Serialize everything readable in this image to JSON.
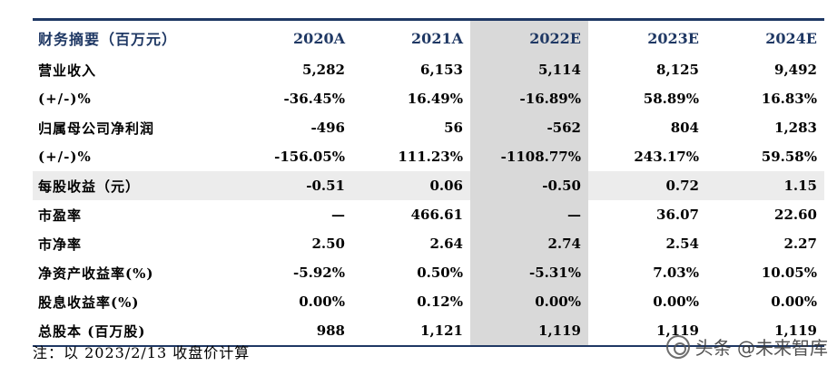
{
  "table": {
    "headers": [
      "财务摘要（百万元）",
      "2020A",
      "2021A",
      "2022E",
      "2023E",
      "2024E"
    ],
    "rows": [
      {
        "label": "营业收入",
        "values": [
          "5,282",
          "6,153",
          "5,114",
          "8,125",
          "9,492"
        ],
        "shaded": false
      },
      {
        "label": "(+/-)%",
        "values": [
          "-36.45%",
          "16.49%",
          "-16.89%",
          "58.89%",
          "16.83%"
        ],
        "shaded": false
      },
      {
        "label": "归属母公司净利润",
        "values": [
          "-496",
          "56",
          "-562",
          "804",
          "1,283"
        ],
        "shaded": false
      },
      {
        "label": "(+/-)%",
        "values": [
          "-156.05%",
          "111.23%",
          "-1108.77%",
          "243.17%",
          "59.58%"
        ],
        "shaded": false
      },
      {
        "label": "每股收益（元）",
        "values": [
          "-0.51",
          "0.06",
          "-0.50",
          "0.72",
          "1.15"
        ],
        "shaded": true
      },
      {
        "label": "市盈率",
        "values": [
          "—",
          "466.61",
          "—",
          "36.07",
          "22.60"
        ],
        "shaded": false
      },
      {
        "label": "市净率",
        "values": [
          "2.50",
          "2.64",
          "2.74",
          "2.54",
          "2.27"
        ],
        "shaded": false
      },
      {
        "label": "净资产收益率(%)",
        "values": [
          "-5.92%",
          "0.50%",
          "-5.31%",
          "7.03%",
          "10.05%"
        ],
        "shaded": false
      },
      {
        "label": "股息收益率(%)",
        "values": [
          "0.00%",
          "0.12%",
          "0.00%",
          "0.00%",
          "0.00%"
        ],
        "shaded": false
      },
      {
        "label": "总股本 (百万股)",
        "values": [
          "988",
          "1,121",
          "1,119",
          "1,119",
          "1,119"
        ],
        "shaded": false
      }
    ]
  },
  "note": "注：以 2023/2/13 收盘价计算",
  "watermark": {
    "text": "头条 @未来智库",
    "icon": "wechat-icon"
  },
  "colors": {
    "header_text": "#1f3864",
    "rule": "#1f3864",
    "shade": "#d9d9d9"
  }
}
